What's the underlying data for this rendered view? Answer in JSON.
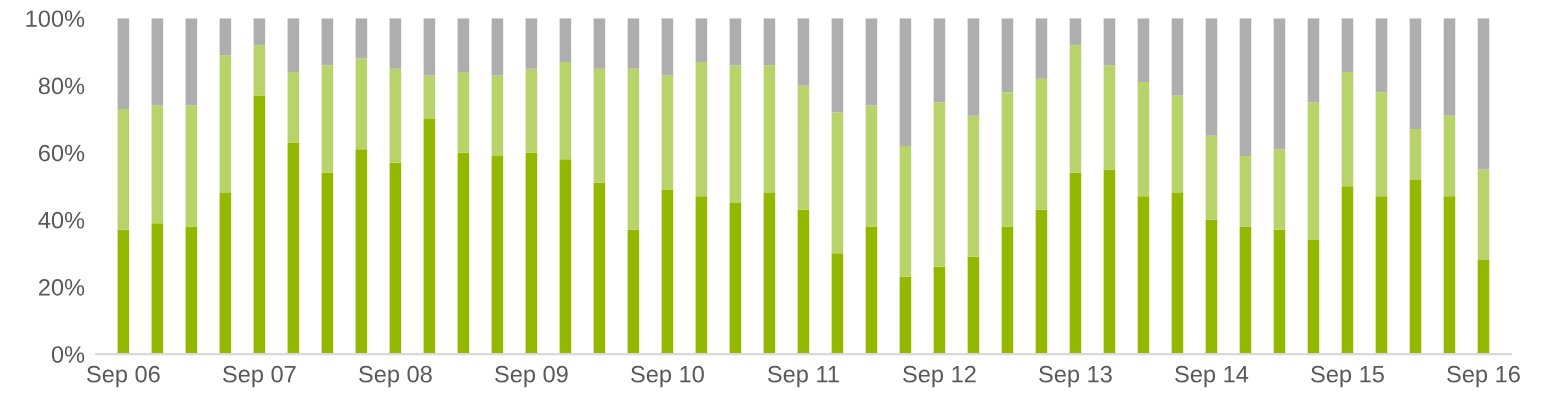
{
  "chart_data": {
    "type": "bar",
    "stacked": true,
    "categories": [
      "Sep 06",
      null,
      null,
      null,
      "Sep 07",
      null,
      null,
      null,
      "Sep 08",
      null,
      null,
      null,
      "Sep 09",
      null,
      null,
      null,
      "Sep 10",
      null,
      null,
      null,
      "Sep 11",
      null,
      null,
      null,
      "Sep 12",
      null,
      null,
      null,
      "Sep 13",
      null,
      null,
      null,
      "Sep 14",
      null,
      null,
      null,
      "Sep 15",
      null,
      null,
      null,
      "Sep 16"
    ],
    "series": [
      {
        "color": "#94b700",
        "values": [
          37,
          39,
          38,
          48,
          77,
          63,
          54,
          61,
          57,
          70,
          60,
          59,
          60,
          58,
          51,
          37,
          49,
          47,
          45,
          48,
          43,
          30,
          38,
          23,
          26,
          29,
          38,
          43,
          54,
          55,
          47,
          48,
          40,
          38,
          37,
          34,
          50,
          47,
          52,
          47,
          28
        ]
      },
      {
        "color": "#b8d36a",
        "values": [
          36,
          35,
          36,
          41,
          15,
          21,
          32,
          27,
          28,
          13,
          24,
          24,
          25,
          29,
          34,
          48,
          34,
          40,
          41,
          38,
          37,
          42,
          36,
          39,
          49,
          42,
          40,
          39,
          38,
          31,
          34,
          29,
          25,
          21,
          24,
          41,
          34,
          31,
          15,
          24,
          27
        ]
      },
      {
        "color": "#aeaeae",
        "values": [
          27,
          26,
          26,
          11,
          8,
          16,
          14,
          12,
          15,
          17,
          16,
          17,
          15,
          13,
          15,
          15,
          17,
          13,
          14,
          14,
          20,
          28,
          26,
          38,
          25,
          29,
          22,
          18,
          8,
          14,
          19,
          23,
          35,
          41,
          39,
          25,
          16,
          22,
          33,
          29,
          45
        ]
      }
    ],
    "ylim": [
      0,
      100
    ],
    "yticks": [
      {
        "value": 0,
        "label": "0%"
      },
      {
        "value": 20,
        "label": "20%"
      },
      {
        "value": 40,
        "label": "40%"
      },
      {
        "value": 60,
        "label": "60%"
      },
      {
        "value": 80,
        "label": "80%"
      },
      {
        "value": 100,
        "label": "100%"
      }
    ],
    "grid": false
  }
}
